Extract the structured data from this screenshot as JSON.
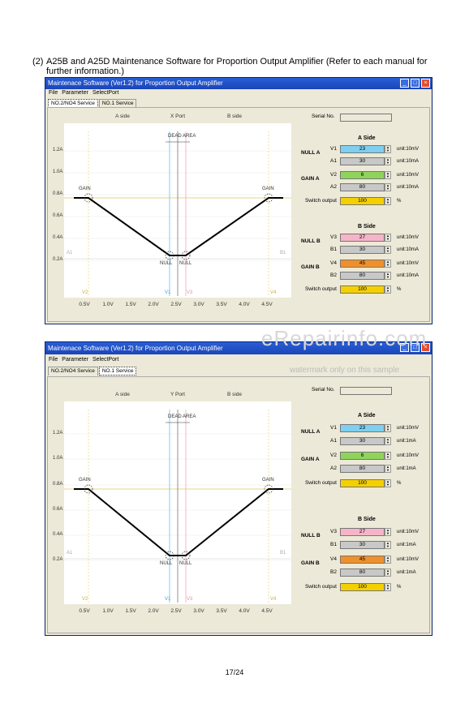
{
  "heading": {
    "number": "(2)",
    "text": "A25B and A25D Maintenance Software for Proportion Output Amplifier (Refer to each manual for further information.)"
  },
  "windows": [
    {
      "title": "Maintenace Software (Ver1.2) for Proportion Output Amplifier",
      "menu": [
        "File",
        "Parameter",
        "SelectPort"
      ],
      "tabs": [
        {
          "label": "NO.2/NO4 Service",
          "active": true
        },
        {
          "label": "NO.1 Service",
          "active": false
        }
      ],
      "chart": {
        "top_labels": [
          "A side",
          "X Port",
          "B side"
        ],
        "y_labels": [
          "1.2A",
          "1.0A",
          "0.8A",
          "0.6A",
          "0.4A",
          "0.2A"
        ],
        "x_labels": [
          "0.5V",
          "1.0V",
          "1.5V",
          "2.0V",
          "2.5V",
          "3.0V",
          "3.5V",
          "4.0V",
          "4.5V"
        ],
        "dead_area": "DEAD AREA",
        "gain_label": "GAIN",
        "null_label": "NULL",
        "a1_label": "A1",
        "b1_label": "B1",
        "v1_label": "V1",
        "v2_label": "V2",
        "v3_label": "V3",
        "v4_label": "V4"
      },
      "serial_label": "Serial No.",
      "a_side": {
        "header": "A Side",
        "null_label": "NULL A",
        "gain_label": "GAIN A",
        "rows": [
          {
            "name": "V1",
            "value": "23",
            "unit": "unit:10mV",
            "color": "#7ecff0"
          },
          {
            "name": "A1",
            "value": "30",
            "unit": "unit:10mA",
            "color": "#c8c8c8"
          },
          {
            "name": "V2",
            "value": "6",
            "unit": "unit:10mV",
            "color": "#8fd45a"
          },
          {
            "name": "A2",
            "value": "80",
            "unit": "unit:10mA",
            "color": "#c8c8c8"
          }
        ],
        "switch_label": "Switch output",
        "switch_value": "100",
        "switch_unit": "%"
      },
      "b_side": {
        "header": "B Side",
        "null_label": "NULL B",
        "gain_label": "GAIN B",
        "rows": [
          {
            "name": "V3",
            "value": "27",
            "unit": "unit:10mV",
            "color": "#f5b4c8"
          },
          {
            "name": "B1",
            "value": "30",
            "unit": "unit:10mA",
            "color": "#c8c8c8"
          },
          {
            "name": "V4",
            "value": "45",
            "unit": "unit:10mV",
            "color": "#f0902a"
          },
          {
            "name": "B2",
            "value": "80",
            "unit": "unit:10mA",
            "color": "#c8c8c8"
          }
        ],
        "switch_label": "Switch output",
        "switch_value": "100",
        "switch_unit": "%"
      }
    },
    {
      "title": "Maintenace Software (Ver1.2) for Proportion Output Amplifier",
      "menu": [
        "File",
        "Parameter",
        "SelectPort"
      ],
      "tabs": [
        {
          "label": "NO.2/NO4 Service",
          "active": false
        },
        {
          "label": "NO.1 Service",
          "active": true
        }
      ],
      "chart": {
        "top_labels": [
          "A side",
          "Y Port",
          "B side"
        ],
        "y_labels": [
          "1.2A",
          "1.0A",
          "0.8A",
          "0.6A",
          "0.4A",
          "0.2A"
        ],
        "x_labels": [
          "0.5V",
          "1.0V",
          "1.5V",
          "2.0V",
          "2.5V",
          "3.0V",
          "3.5V",
          "4.0V",
          "4.5V"
        ],
        "dead_area": "DEAD AREA",
        "gain_label": "GAIN",
        "null_label": "NULL",
        "a1_label": "A1",
        "b1_label": "B1",
        "v1_label": "V1",
        "v2_label": "V2",
        "v3_label": "V3",
        "v4_label": "V4"
      },
      "serial_label": "Serial No.",
      "a_side": {
        "header": "A Side",
        "null_label": "NULL A",
        "gain_label": "GAIN A",
        "rows": [
          {
            "name": "V1",
            "value": "23",
            "unit": "unit:10mV",
            "color": "#7ecff0"
          },
          {
            "name": "A1",
            "value": "30",
            "unit": "unit:1mA",
            "color": "#c8c8c8"
          },
          {
            "name": "V2",
            "value": "6",
            "unit": "unit:10mV",
            "color": "#8fd45a"
          },
          {
            "name": "A2",
            "value": "80",
            "unit": "unit:1mA",
            "color": "#c8c8c8"
          }
        ],
        "switch_label": "Switch output",
        "switch_value": "100",
        "switch_unit": "%"
      },
      "b_side": {
        "header": "B Side",
        "null_label": "NULL B",
        "gain_label": "GAIN B",
        "rows": [
          {
            "name": "V3",
            "value": "27",
            "unit": "unit:10mV",
            "color": "#f5b4c8"
          },
          {
            "name": "B1",
            "value": "30",
            "unit": "unit:1mA",
            "color": "#c8c8c8"
          },
          {
            "name": "V4",
            "value": "45",
            "unit": "unit:10mV",
            "color": "#f0902a"
          },
          {
            "name": "B2",
            "value": "80",
            "unit": "unit:1mA",
            "color": "#c8c8c8"
          }
        ],
        "switch_label": "Switch output",
        "switch_value": "100",
        "switch_unit": "%"
      }
    }
  ],
  "switch_color": "#f5d000",
  "watermark": {
    "site": "eRepairinfo.com",
    "note": "watermark only on this sample"
  },
  "page_number": "17/24"
}
